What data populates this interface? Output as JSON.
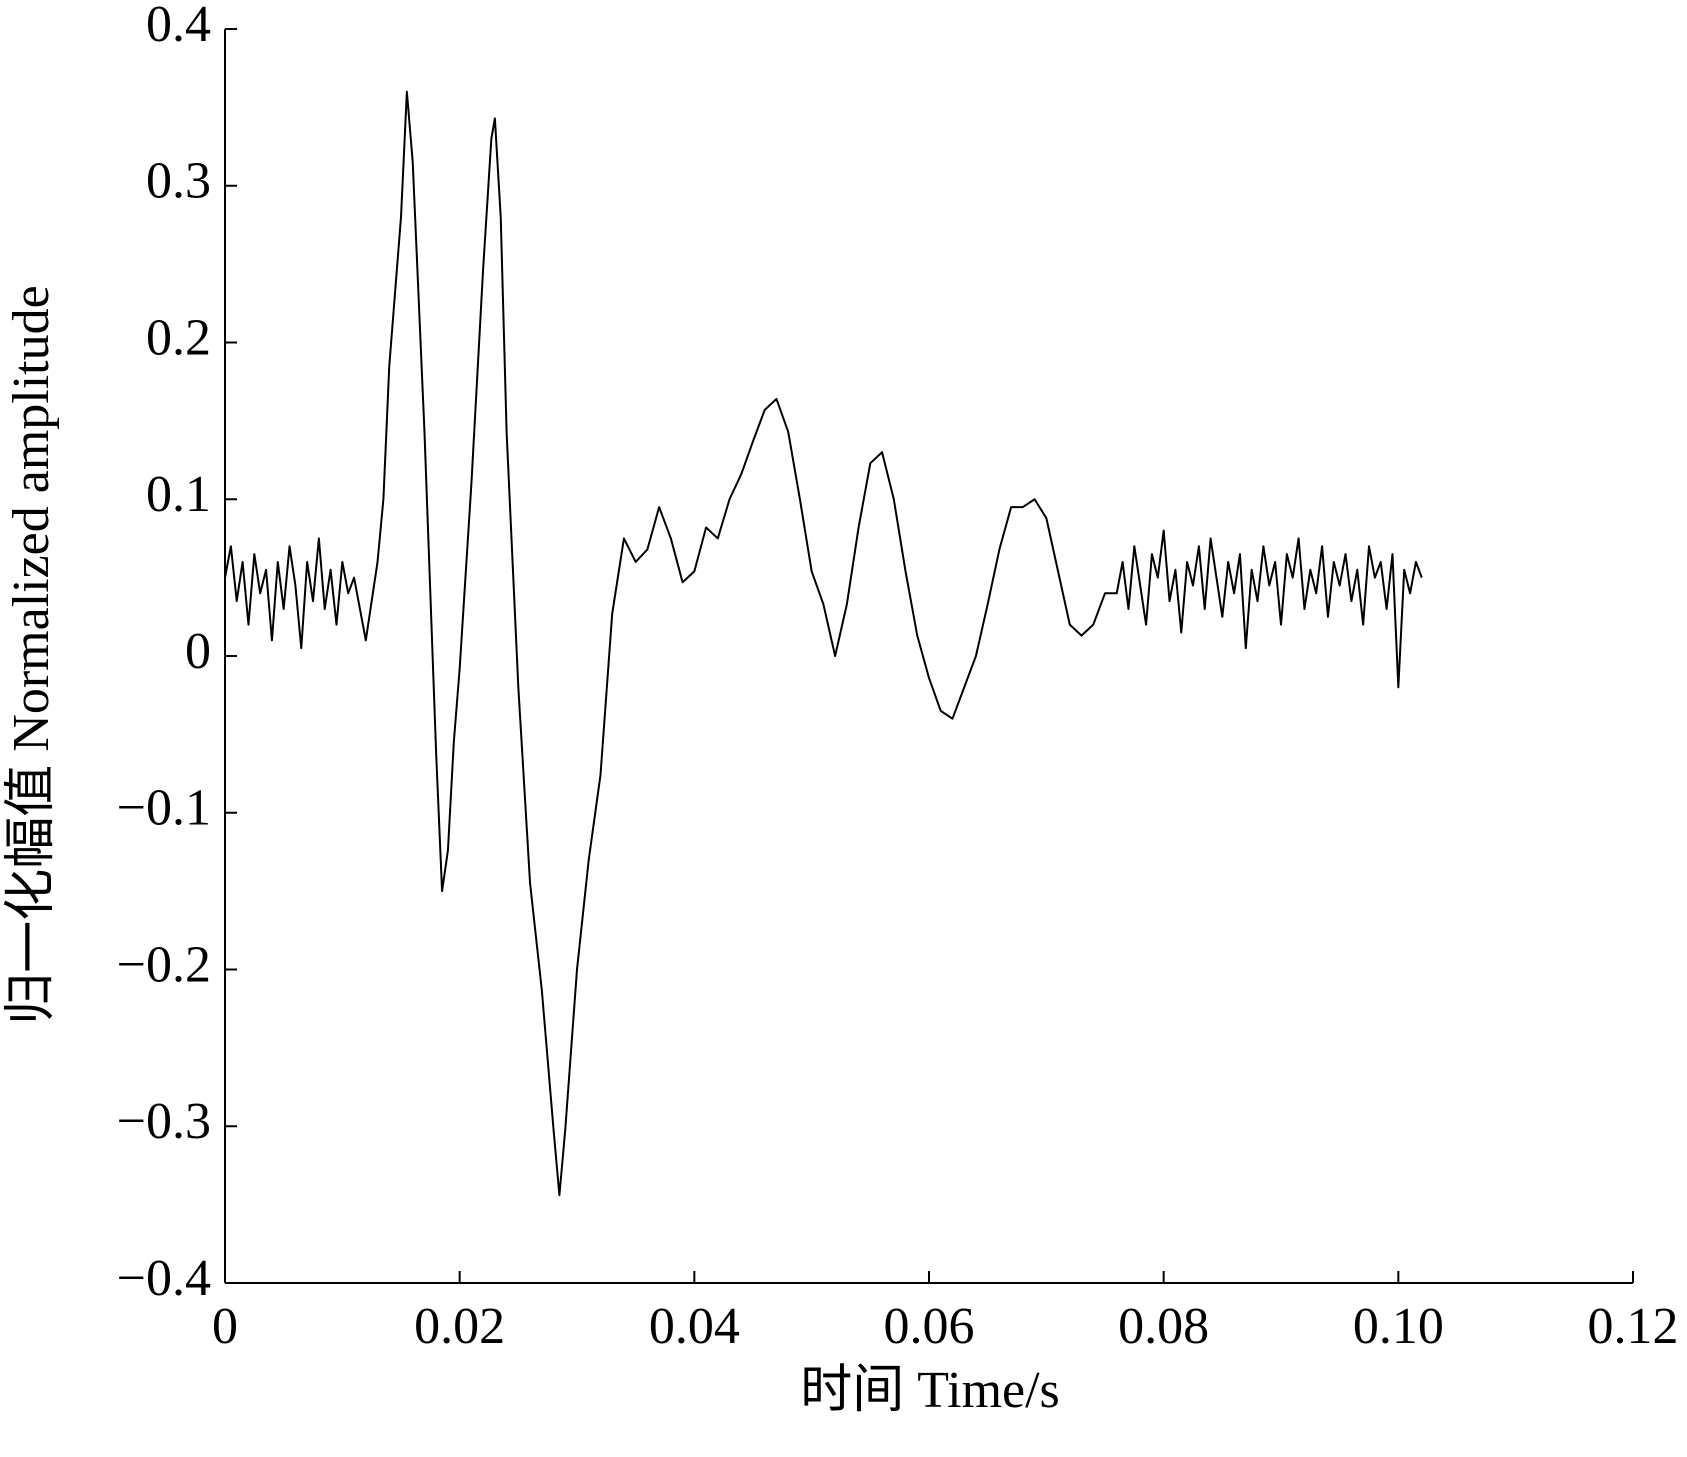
{
  "chart_data": {
    "type": "line",
    "x_label": "时间  Time/s",
    "y_label": "归一化幅值 Normalized amplitude",
    "color": "#000000",
    "xlim": [
      0,
      0.12
    ],
    "xticks": [
      0,
      0.02,
      0.04,
      0.06,
      0.08,
      {
        "value": 0.1,
        "label": "0.10"
      },
      0.12
    ],
    "ylim": [
      -0.4,
      0.4
    ],
    "yticks": [
      {
        "value": -0.4,
        "label": "−0.4"
      },
      {
        "value": -0.3,
        "label": "−0.3"
      },
      {
        "value": -0.2,
        "label": "−0.2"
      },
      {
        "value": -0.1,
        "label": "−0.1"
      },
      0,
      0.1,
      0.2,
      0.3,
      0.4
    ],
    "x": [
      0,
      0.0005,
      0.001,
      0.0015,
      0.002,
      0.0025,
      0.003,
      0.0035,
      0.004,
      0.0045,
      0.005,
      0.0055,
      0.006,
      0.0065,
      0.007,
      0.0075,
      0.008,
      0.0085,
      0.009,
      0.0095,
      0.01,
      0.0105,
      0.011,
      0.0115,
      0.012,
      0.013,
      0.0135,
      0.014,
      0.015,
      0.0155,
      0.016,
      0.017,
      0.018,
      0.0185,
      0.019,
      0.0195,
      0.02,
      0.021,
      0.022,
      0.0227,
      0.023,
      0.0235,
      0.024,
      0.025,
      0.026,
      0.027,
      0.028,
      0.0285,
      0.029,
      0.03,
      0.031,
      0.032,
      0.033,
      0.034,
      0.035,
      0.036,
      0.037,
      0.038,
      0.039,
      0.04,
      0.041,
      0.042,
      0.043,
      0.044,
      0.045,
      0.046,
      0.047,
      0.048,
      0.049,
      0.05,
      0.051,
      0.052,
      0.053,
      0.054,
      0.055,
      0.056,
      0.057,
      0.058,
      0.059,
      0.06,
      0.061,
      0.062,
      0.063,
      0.064,
      0.065,
      0.066,
      0.067,
      0.068,
      0.069,
      0.07,
      0.071,
      0.072,
      0.073,
      0.074,
      0.075,
      0.076,
      0.0765,
      0.077,
      0.0775,
      0.078,
      0.0785,
      0.079,
      0.0795,
      0.08,
      0.0805,
      0.081,
      0.0815,
      0.082,
      0.0825,
      0.083,
      0.0835,
      0.084,
      0.0845,
      0.085,
      0.0855,
      0.086,
      0.0865,
      0.087,
      0.0875,
      0.088,
      0.0885,
      0.089,
      0.0895,
      0.09,
      0.0905,
      0.091,
      0.0915,
      0.092,
      0.0925,
      0.093,
      0.0935,
      0.094,
      0.0945,
      0.095,
      0.0955,
      0.096,
      0.0965,
      0.097,
      0.0975,
      0.098,
      0.0985,
      0.099,
      0.0995,
      0.1,
      0.1005,
      0.101,
      0.1015,
      0.102
    ],
    "values": [
      0.05,
      0.07,
      0.035,
      0.06,
      0.02,
      0.065,
      0.04,
      0.055,
      0.01,
      0.06,
      0.03,
      0.07,
      0.045,
      0.005,
      0.06,
      0.035,
      0.075,
      0.03,
      0.055,
      0.02,
      0.06,
      0.04,
      0.05,
      0.03,
      0.01,
      0.06,
      0.1,
      0.185,
      0.28,
      0.36,
      0.315,
      0.143,
      -0.063,
      -0.15,
      -0.124,
      -0.055,
      -0.008,
      0.11,
      0.247,
      0.33,
      0.343,
      0.28,
      0.143,
      -0.02,
      -0.145,
      -0.213,
      -0.302,
      -0.344,
      -0.302,
      -0.2,
      -0.13,
      -0.076,
      0.027,
      0.075,
      0.06,
      0.068,
      0.095,
      0.075,
      0.047,
      0.054,
      0.082,
      0.075,
      0.1,
      0.116,
      0.137,
      0.157,
      0.164,
      0.143,
      0.1,
      0.054,
      0.033,
      0,
      0.033,
      0.082,
      0.123,
      0.13,
      0.1,
      0.054,
      0.013,
      -0.014,
      -0.035,
      -0.04,
      -0.02,
      0,
      0.033,
      0.068,
      0.095,
      0.095,
      0.1,
      0.088,
      0.054,
      0.02,
      0.013,
      0.02,
      0.04,
      0.04,
      0.06,
      0.03,
      0.07,
      0.045,
      0.02,
      0.065,
      0.05,
      0.08,
      0.035,
      0.055,
      0.015,
      0.06,
      0.045,
      0.07,
      0.03,
      0.075,
      0.05,
      0.025,
      0.06,
      0.04,
      0.065,
      0.005,
      0.055,
      0.035,
      0.07,
      0.045,
      0.06,
      0.02,
      0.065,
      0.05,
      0.075,
      0.03,
      0.055,
      0.04,
      0.07,
      0.025,
      0.06,
      0.045,
      0.065,
      0.035,
      0.055,
      0.02,
      0.07,
      0.05,
      0.06,
      0.03,
      0.065,
      -0.02,
      0.055,
      0.04,
      0.06,
      0.05
    ]
  }
}
